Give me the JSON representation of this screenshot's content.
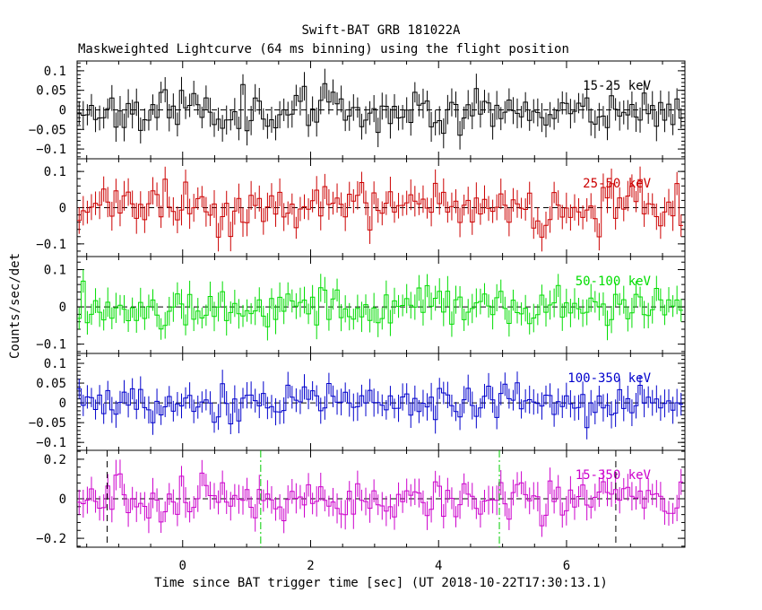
{
  "chart_data": {
    "type": "line",
    "title": "Swift-BAT GRB 181022A",
    "subtitle": "Maskweighted Lightcurve (64 ms binning) using the flight position",
    "xlabel": "Time since BAT trigger time [sec] (UT 2018-10-22T17:30:13.1)",
    "ylabel": "Counts/sec/det",
    "xlim": [
      -1.65,
      7.85
    ],
    "x_ticks": [
      "0",
      "2",
      "4",
      "6"
    ],
    "x_tick_values": [
      0,
      2,
      4,
      6
    ],
    "bin_width_s": 0.064,
    "vertical_markers": [
      {
        "x": -1.18,
        "style": "dashed",
        "color": "#000000",
        "panel": 4
      },
      {
        "x": 6.77,
        "style": "dashed",
        "color": "#000000",
        "panel": 4
      },
      {
        "x": 1.22,
        "style": "dash-dot",
        "color": "#00cc00",
        "panel": 4
      },
      {
        "x": 4.95,
        "style": "dash-dot",
        "color": "#00cc00",
        "panel": 4
      }
    ],
    "panels": [
      {
        "name": "15-25 keV",
        "color": "#000000",
        "ylim": [
          -0.125,
          0.125
        ],
        "y_ticks": [
          "0.1",
          "0.05",
          "0",
          "−0.05",
          "−0.1"
        ],
        "y_tick_values": [
          0.1,
          0.05,
          0,
          -0.05,
          -0.1
        ],
        "noise": 0.028,
        "err": 0.032,
        "seed": 11
      },
      {
        "name": "25-50 keV",
        "color": "#cc0000",
        "ylim": [
          -0.135,
          0.135
        ],
        "y_ticks": [
          "0.1",
          "0",
          "−0.1"
        ],
        "y_tick_values": [
          0.1,
          0,
          -0.1
        ],
        "noise": 0.032,
        "err": 0.036,
        "seed": 23
      },
      {
        "name": "50-100 keV",
        "color": "#00dd00",
        "ylim": [
          -0.125,
          0.135
        ],
        "y_ticks": [
          "0.1",
          "0",
          "−0.1"
        ],
        "y_tick_values": [
          0.1,
          0,
          -0.1
        ],
        "noise": 0.028,
        "err": 0.034,
        "seed": 37
      },
      {
        "name": "100-350 keV",
        "color": "#0000cc",
        "ylim": [
          -0.12,
          0.125
        ],
        "y_ticks": [
          "0.1",
          "0.05",
          "0",
          "−0.05",
          "−0.1"
        ],
        "y_tick_values": [
          0.1,
          0.05,
          0,
          -0.05,
          -0.1
        ],
        "noise": 0.025,
        "err": 0.03,
        "seed": 53
      },
      {
        "name": "15-350 keV",
        "color": "#cc00cc",
        "ylim": [
          -0.245,
          0.245
        ],
        "y_ticks": [
          "0.2",
          "0",
          "−0.2"
        ],
        "y_tick_values": [
          0.2,
          0,
          -0.2
        ],
        "noise": 0.055,
        "err": 0.065,
        "seed": 71
      }
    ]
  }
}
